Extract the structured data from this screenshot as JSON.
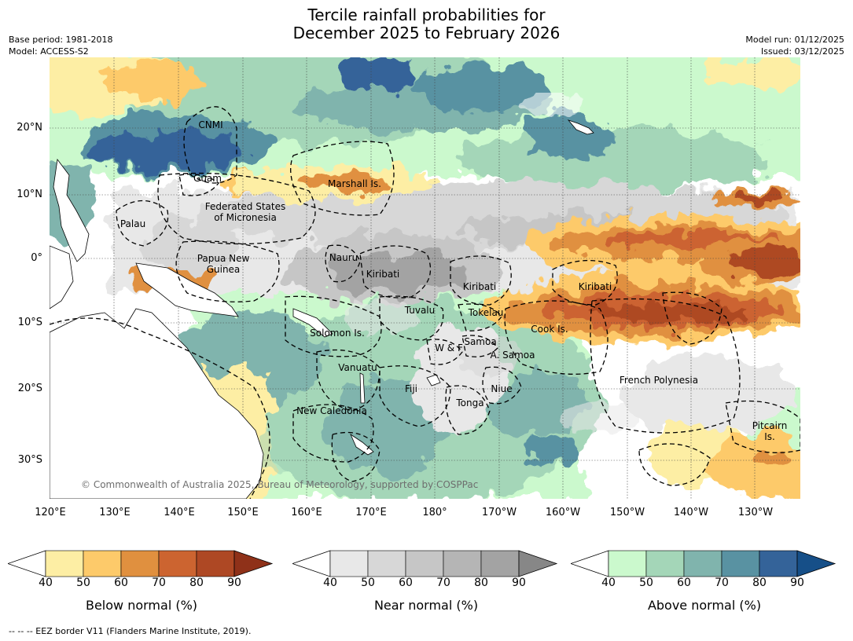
{
  "title": {
    "line1": "Tercile rainfall probabilities for",
    "line2": "December 2025 to February 2026"
  },
  "meta": {
    "base_period": "Base period: 1981-2018",
    "model": "Model: ACCESS-S2",
    "model_run": "Model run: 01/12/2025",
    "issued": "Issued: 03/12/2025"
  },
  "map": {
    "lat_labels": [
      "20°N",
      "10°N",
      "0°",
      "10°S",
      "20°S",
      "30°S"
    ],
    "lon_labels": [
      "120°E",
      "130°E",
      "140°E",
      "150°E",
      "160°E",
      "170°E",
      "180°",
      "170°W",
      "160°W",
      "150°W",
      "140°W",
      "130°W"
    ],
    "regions": {
      "cnmi": "CNMI",
      "guam": "Guam",
      "marshall": "Marshall Is.",
      "fsm_line1": "Federated States",
      "fsm_line2": "of Micronesia",
      "palau": "Palau",
      "png_line1": "Papua New",
      "png_line2": "Guinea",
      "nauru": "Nauru",
      "kiribati_west": "Kiribati",
      "kiribati_central": "Kiribati",
      "kiribati_east": "Kiribati",
      "tuvalu": "Tuvalu",
      "tokelau": "Tokelau",
      "cook": "Cook Is.",
      "solomon": "Solomon Is.",
      "wallis": "W & F",
      "samoa": "Samoa",
      "asamoa": "A. Samoa",
      "vanuatu": "Vanuatu",
      "fiji": "Fiji",
      "niue": "Niue",
      "french_polynesia": "French Polynesia",
      "tonga": "Tonga",
      "new_caledonia": "New Caledonia",
      "pitcairn_line1": "Pitcairn",
      "pitcairn_line2": "Is."
    },
    "copyright": "© Commonwealth of Australia 2025, Bureau of Meteorology, supported by COSPPac"
  },
  "colorbars": [
    {
      "title": "Below normal (%)",
      "ticks": [
        "40",
        "50",
        "60",
        "70",
        "80",
        "90"
      ],
      "colors": [
        "#ffffff",
        "#fdeea4",
        "#fdca6a",
        "#e0903f",
        "#cc6430",
        "#ae4824",
        "#8f3119"
      ]
    },
    {
      "title": "Near normal (%)",
      "ticks": [
        "40",
        "50",
        "60",
        "70",
        "80",
        "90"
      ],
      "colors": [
        "#ffffff",
        "#e8e8e8",
        "#d7d7d7",
        "#c6c6c6",
        "#b5b5b5",
        "#a3a3a3",
        "#878787"
      ]
    },
    {
      "title": "Above normal (%)",
      "ticks": [
        "40",
        "50",
        "60",
        "70",
        "80",
        "90"
      ],
      "colors": [
        "#ffffff",
        "#cbf9cd",
        "#a4d6b8",
        "#80b4ad",
        "#5992a2",
        "#346399",
        "#164f88"
      ]
    }
  ],
  "footnote": "--  --  -- EEZ border V11 (Flanders Marine Institute, 2019)."
}
